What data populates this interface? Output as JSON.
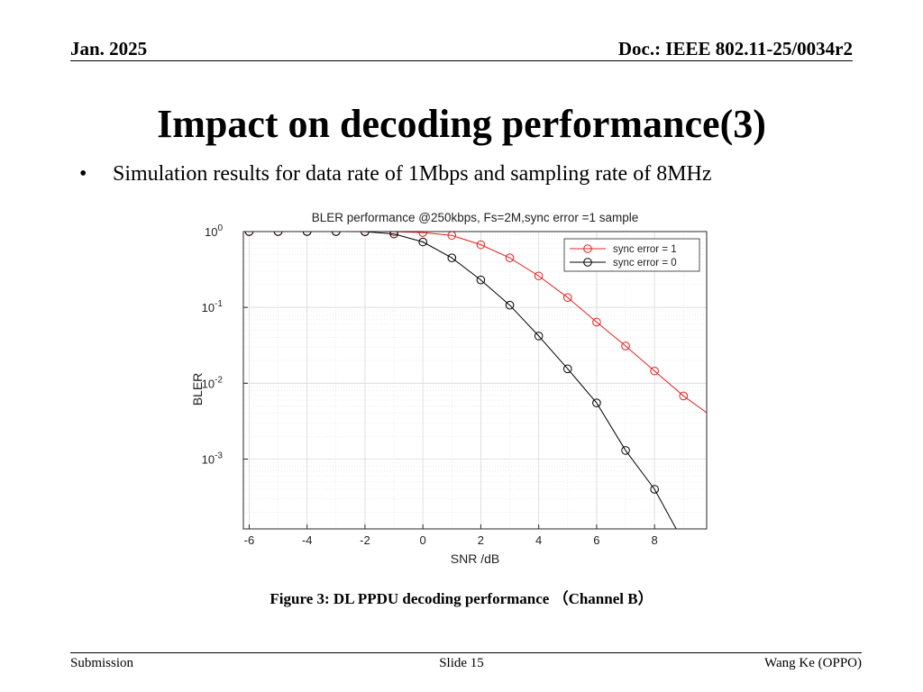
{
  "header": {
    "date": "Jan. 2025",
    "doc_id": "Doc.: IEEE 802.11-25/0034r2"
  },
  "slide": {
    "title": "Impact on decoding performance(3)",
    "bullet_marker": "•",
    "bullet": "Simulation results for data rate of 1Mbps and sampling rate of 8MHz",
    "caption": "Figure 3: DL  PPDU decoding performance （Channel B）"
  },
  "footer": {
    "left": "Submission",
    "center": "Slide 15",
    "right": "Wang Ke (OPPO)"
  },
  "colors": {
    "series_red": "#e8201f",
    "series_black": "#000000",
    "grid": "#d9d9d9"
  },
  "chart_data": {
    "type": "line",
    "title": "BLER performance @250kbps, Fs=2M,sync error =1 sample",
    "xlabel": "SNR /dB",
    "ylabel": "BLER",
    "x_scale": "linear",
    "y_scale": "log",
    "xlim": [
      -6.2,
      9.8
    ],
    "ylim": [
      0.00012,
      1.0
    ],
    "x_ticks": [
      -6,
      -4,
      -2,
      0,
      2,
      4,
      6,
      8
    ],
    "y_ticks": [
      {
        "value": 1,
        "base": "10",
        "exp": "0"
      },
      {
        "value": 0.1,
        "base": "10",
        "exp": "-1"
      },
      {
        "value": 0.01,
        "base": "10",
        "exp": "-2"
      },
      {
        "value": 0.001,
        "base": "10",
        "exp": "-3"
      }
    ],
    "grid": true,
    "legend_position": "top-right",
    "series": [
      {
        "name": "sync error = 1",
        "color": "#e8201f",
        "marker": "circle",
        "x": [
          -6,
          -5,
          -4,
          -3,
          -2,
          -1,
          0,
          1,
          2,
          3,
          4,
          5,
          6,
          7,
          8,
          9,
          10
        ],
        "y": [
          1.0,
          1.0,
          1.0,
          1.0,
          1.0,
          0.995,
          0.97,
          0.89,
          0.67,
          0.45,
          0.26,
          0.135,
          0.064,
          0.031,
          0.0145,
          0.0068,
          0.0036
        ]
      },
      {
        "name": "sync error = 0",
        "color": "#000000",
        "marker": "circle",
        "x": [
          -6,
          -5,
          -4,
          -3,
          -2,
          -1,
          0,
          1,
          2,
          3,
          4,
          5,
          6,
          7,
          8,
          9
        ],
        "y": [
          1.0,
          1.0,
          1.0,
          1.0,
          0.995,
          0.93,
          0.73,
          0.45,
          0.23,
          0.107,
          0.042,
          0.0155,
          0.0055,
          0.0013,
          0.0004,
          8e-05
        ]
      }
    ]
  }
}
